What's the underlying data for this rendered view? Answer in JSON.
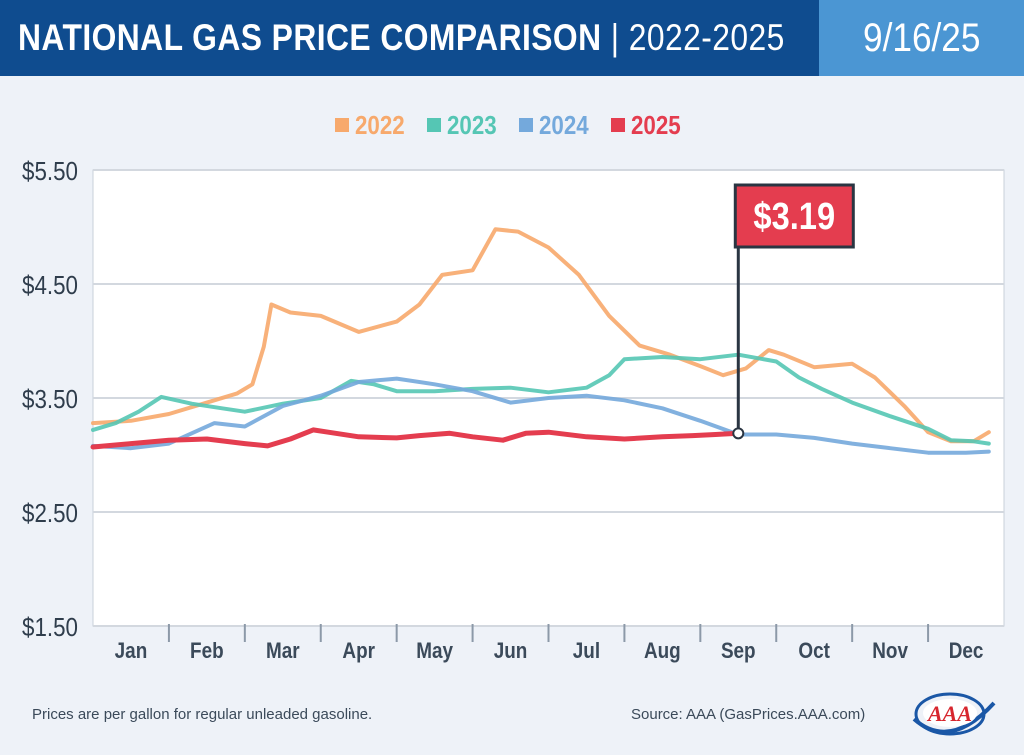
{
  "header": {
    "title": "NATIONAL GAS PRICE COMPARISON",
    "separator": "|",
    "subtitle": "2022-2025",
    "date": "9/16/25"
  },
  "footer": {
    "note": "Prices are per gallon for regular unleaded gasoline.",
    "source": "Source: AAA (GasPrices.AAA.com)",
    "logo_text": "AAA"
  },
  "colors": {
    "header_bg": "#0f4c8f",
    "date_bg": "#4b96d3",
    "y2022": "#f7a96c",
    "y2023": "#55c6b4",
    "y2024": "#74a9dc",
    "y2025": "#e43d4f",
    "flag": "#e43d4f",
    "axis_text": "#2f3d4c"
  },
  "chart_data": {
    "type": "line",
    "title": "NATIONAL GAS PRICE COMPARISON | 2022-2025",
    "x_unit": "month (0 = Jan 1, 12 = Dec 31)",
    "xlim": [
      0,
      12
    ],
    "ylim": [
      1.5,
      5.5
    ],
    "yticks": [
      1.5,
      2.5,
      3.5,
      4.5,
      5.5
    ],
    "ytick_labels": [
      "$1.50",
      "$2.50",
      "$3.50",
      "$4.50",
      "$5.50"
    ],
    "months": [
      "Jan",
      "Feb",
      "Mar",
      "Apr",
      "May",
      "Jun",
      "Jul",
      "Aug",
      "Sep",
      "Oct",
      "Nov",
      "Dec"
    ],
    "grid": true,
    "legend_position": "top-center",
    "series": [
      {
        "name": "2022",
        "color": "#f7a96c",
        "points": [
          [
            0.0,
            3.28
          ],
          [
            0.5,
            3.3
          ],
          [
            1.0,
            3.36
          ],
          [
            1.5,
            3.46
          ],
          [
            1.9,
            3.54
          ],
          [
            2.1,
            3.62
          ],
          [
            2.25,
            3.95
          ],
          [
            2.35,
            4.32
          ],
          [
            2.6,
            4.25
          ],
          [
            3.0,
            4.22
          ],
          [
            3.5,
            4.08
          ],
          [
            4.0,
            4.17
          ],
          [
            4.3,
            4.32
          ],
          [
            4.6,
            4.58
          ],
          [
            5.0,
            4.62
          ],
          [
            5.3,
            4.98
          ],
          [
            5.6,
            4.96
          ],
          [
            6.0,
            4.82
          ],
          [
            6.4,
            4.58
          ],
          [
            6.8,
            4.22
          ],
          [
            7.2,
            3.96
          ],
          [
            7.6,
            3.88
          ],
          [
            8.0,
            3.78
          ],
          [
            8.3,
            3.7
          ],
          [
            8.6,
            3.76
          ],
          [
            8.9,
            3.92
          ],
          [
            9.1,
            3.88
          ],
          [
            9.5,
            3.77
          ],
          [
            10.0,
            3.8
          ],
          [
            10.3,
            3.68
          ],
          [
            10.7,
            3.42
          ],
          [
            11.0,
            3.2
          ],
          [
            11.3,
            3.12
          ],
          [
            11.6,
            3.12
          ],
          [
            11.8,
            3.2
          ]
        ]
      },
      {
        "name": "2023",
        "color": "#55c6b4",
        "points": [
          [
            0.0,
            3.22
          ],
          [
            0.3,
            3.28
          ],
          [
            0.6,
            3.38
          ],
          [
            0.9,
            3.51
          ],
          [
            1.3,
            3.45
          ],
          [
            1.7,
            3.41
          ],
          [
            2.0,
            3.38
          ],
          [
            2.5,
            3.45
          ],
          [
            3.0,
            3.5
          ],
          [
            3.4,
            3.65
          ],
          [
            3.7,
            3.62
          ],
          [
            4.0,
            3.56
          ],
          [
            4.5,
            3.56
          ],
          [
            5.0,
            3.58
          ],
          [
            5.5,
            3.59
          ],
          [
            6.0,
            3.55
          ],
          [
            6.5,
            3.59
          ],
          [
            6.8,
            3.7
          ],
          [
            7.0,
            3.84
          ],
          [
            7.5,
            3.86
          ],
          [
            8.0,
            3.84
          ],
          [
            8.5,
            3.88
          ],
          [
            9.0,
            3.82
          ],
          [
            9.3,
            3.68
          ],
          [
            9.6,
            3.58
          ],
          [
            10.0,
            3.46
          ],
          [
            10.5,
            3.34
          ],
          [
            11.0,
            3.23
          ],
          [
            11.3,
            3.13
          ],
          [
            11.6,
            3.12
          ],
          [
            11.8,
            3.1
          ]
        ]
      },
      {
        "name": "2024",
        "color": "#74a9dc",
        "points": [
          [
            0.0,
            3.08
          ],
          [
            0.5,
            3.06
          ],
          [
            1.0,
            3.1
          ],
          [
            1.3,
            3.19
          ],
          [
            1.6,
            3.28
          ],
          [
            2.0,
            3.25
          ],
          [
            2.5,
            3.43
          ],
          [
            3.0,
            3.52
          ],
          [
            3.5,
            3.64
          ],
          [
            4.0,
            3.67
          ],
          [
            4.5,
            3.62
          ],
          [
            5.0,
            3.56
          ],
          [
            5.5,
            3.46
          ],
          [
            6.0,
            3.5
          ],
          [
            6.5,
            3.52
          ],
          [
            7.0,
            3.48
          ],
          [
            7.5,
            3.41
          ],
          [
            8.0,
            3.3
          ],
          [
            8.5,
            3.18
          ],
          [
            9.0,
            3.18
          ],
          [
            9.5,
            3.15
          ],
          [
            10.0,
            3.1
          ],
          [
            10.5,
            3.06
          ],
          [
            11.0,
            3.02
          ],
          [
            11.5,
            3.02
          ],
          [
            11.8,
            3.03
          ]
        ]
      },
      {
        "name": "2025",
        "color": "#e43d4f",
        "points": [
          [
            0.0,
            3.07
          ],
          [
            0.5,
            3.1
          ],
          [
            1.0,
            3.13
          ],
          [
            1.5,
            3.14
          ],
          [
            2.0,
            3.1
          ],
          [
            2.3,
            3.08
          ],
          [
            2.6,
            3.14
          ],
          [
            2.9,
            3.22
          ],
          [
            3.1,
            3.2
          ],
          [
            3.5,
            3.16
          ],
          [
            4.0,
            3.15
          ],
          [
            4.3,
            3.17
          ],
          [
            4.7,
            3.19
          ],
          [
            5.0,
            3.16
          ],
          [
            5.4,
            3.13
          ],
          [
            5.7,
            3.19
          ],
          [
            6.0,
            3.2
          ],
          [
            6.5,
            3.16
          ],
          [
            7.0,
            3.14
          ],
          [
            7.5,
            3.16
          ],
          [
            7.9,
            3.17
          ],
          [
            8.2,
            3.18
          ],
          [
            8.5,
            3.19
          ]
        ]
      }
    ],
    "annotation": {
      "label": "$3.19",
      "x": 8.5,
      "y": 3.19,
      "series": "2025"
    }
  }
}
